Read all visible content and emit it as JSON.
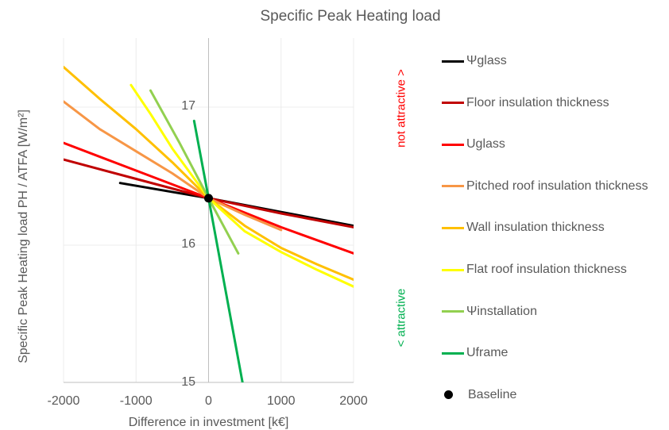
{
  "chart_data": {
    "type": "line",
    "title": "Specific Peak Heating load",
    "xlabel": "Difference in investment [k€]",
    "ylabel": "Specific Peak Heating load PH / ATFA [W/m²]",
    "xlim": [
      -2000,
      2000
    ],
    "ylim": [
      15,
      17.5
    ],
    "x_ticks": [
      -2000,
      -1000,
      0,
      1000,
      2000
    ],
    "x_tick_labels": [
      "-2000",
      "-1000",
      "0",
      "1000",
      "2000"
    ],
    "y_ticks": [
      15,
      16,
      17
    ],
    "y_tick_labels": [
      "15",
      "16",
      "17"
    ],
    "grid": true,
    "legend_position": "right",
    "annotations": {
      "not_attractive": "not attractive >",
      "attractive": "< attractive"
    },
    "baseline": {
      "name": "Baseline",
      "x": 0,
      "y": 16.34,
      "color": "#000000"
    },
    "series": [
      {
        "name": "Ψglass",
        "color": "#000000",
        "points": [
          [
            -1220,
            16.45
          ],
          [
            0,
            16.34
          ],
          [
            1000,
            16.24
          ],
          [
            2000,
            16.14
          ]
        ]
      },
      {
        "name": "Floor insulation thickness",
        "color": "#c00000",
        "points": [
          [
            -2000,
            16.62
          ],
          [
            -1000,
            16.48
          ],
          [
            0,
            16.34
          ],
          [
            1000,
            16.23
          ],
          [
            2000,
            16.13
          ]
        ]
      },
      {
        "name": "Uglass",
        "color": "#ff0000",
        "points": [
          [
            -2000,
            16.74
          ],
          [
            -1000,
            16.54
          ],
          [
            0,
            16.34
          ],
          [
            1000,
            16.13
          ],
          [
            2000,
            15.94
          ]
        ]
      },
      {
        "name": "Pitched roof insulation thickness",
        "color": "#f79646",
        "points": [
          [
            -2000,
            17.04
          ],
          [
            -1500,
            16.84
          ],
          [
            -1000,
            16.68
          ],
          [
            -500,
            16.52
          ],
          [
            0,
            16.34
          ],
          [
            500,
            16.22
          ],
          [
            1000,
            16.11
          ]
        ]
      },
      {
        "name": "Wall insulation thickness",
        "color": "#ffc000",
        "points": [
          [
            -2000,
            17.29
          ],
          [
            -1500,
            17.06
          ],
          [
            -1000,
            16.84
          ],
          [
            -500,
            16.6
          ],
          [
            0,
            16.34
          ],
          [
            500,
            16.14
          ],
          [
            1000,
            15.98
          ],
          [
            1500,
            15.86
          ],
          [
            2000,
            15.75
          ]
        ]
      },
      {
        "name": "Flat roof insulation thickness",
        "color": "#ffff00",
        "points": [
          [
            -1070,
            17.16
          ],
          [
            -800,
            16.95
          ],
          [
            -500,
            16.7
          ],
          [
            0,
            16.34
          ],
          [
            500,
            16.1
          ],
          [
            1000,
            15.95
          ],
          [
            1500,
            15.82
          ],
          [
            2000,
            15.7
          ]
        ]
      },
      {
        "name": "Ψinstallation",
        "color": "#92d050",
        "points": [
          [
            -800,
            17.12
          ],
          [
            -400,
            16.74
          ],
          [
            0,
            16.34
          ],
          [
            410,
            15.94
          ]
        ]
      },
      {
        "name": "Uframe",
        "color": "#00b050",
        "points": [
          [
            -200,
            16.9
          ],
          [
            0,
            16.34
          ],
          [
            470,
            15.0
          ]
        ]
      }
    ]
  }
}
